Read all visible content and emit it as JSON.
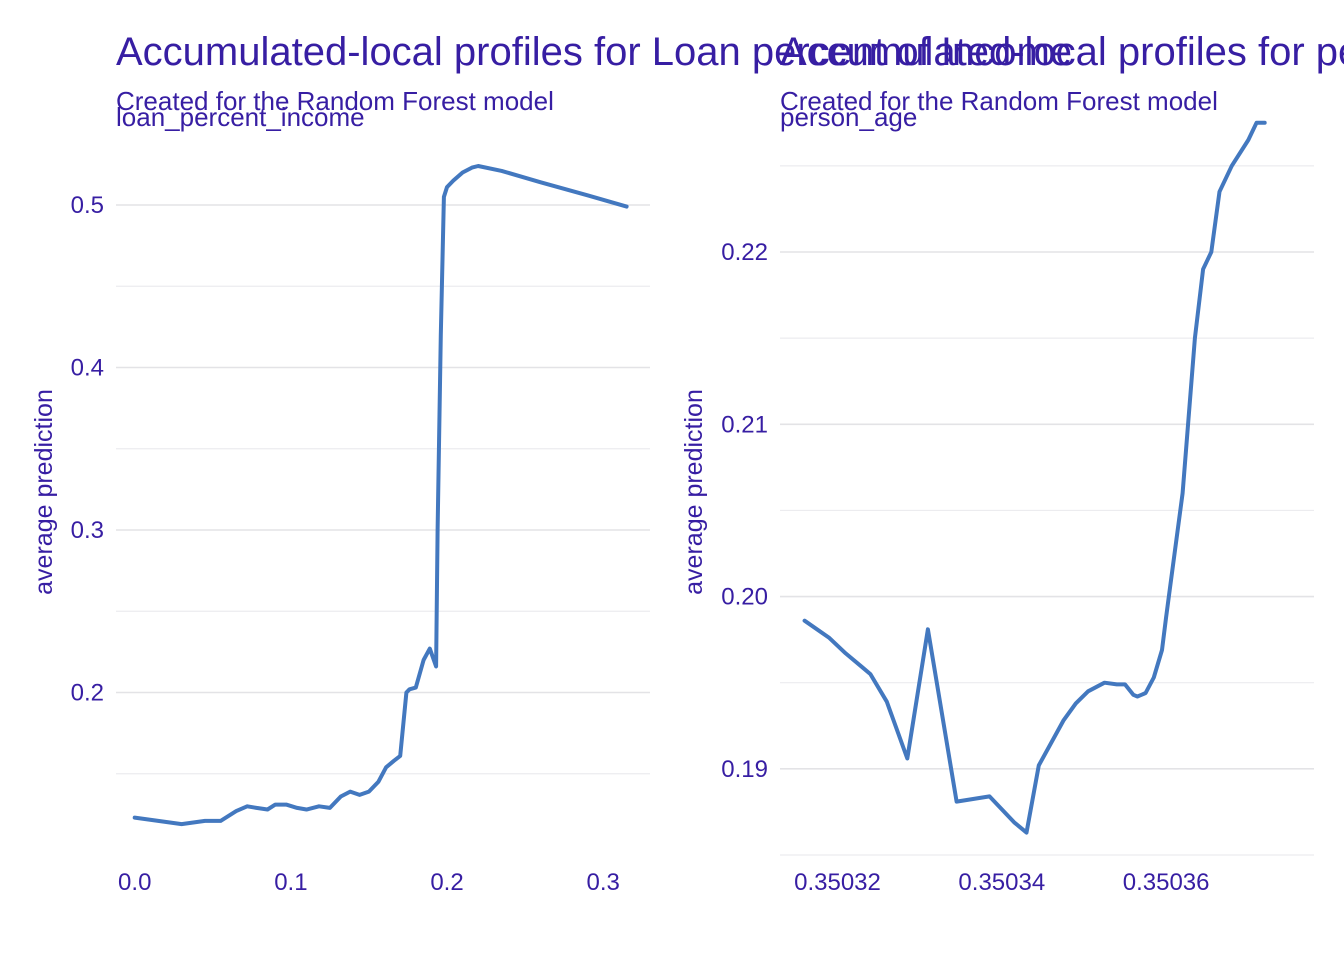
{
  "colors": {
    "text": "#371ea3",
    "line": "#4378bf",
    "grid": "#e3e3e6"
  },
  "chart_data": [
    {
      "type": "line",
      "title": "Accumulated-local profiles for Loan percent of Income",
      "subtitle_line1": "Created for the Random Forest model",
      "subtitle_line2": "loan_percent_income",
      "ylabel": "average prediction",
      "xlabel": "",
      "xlim": [
        -0.012,
        0.33
      ],
      "ylim": [
        0.1,
        0.54
      ],
      "x_ticks": [
        0.0,
        0.1,
        0.2,
        0.3
      ],
      "x_tick_labels": [
        "0.0",
        "0.1",
        "0.2",
        "0.3"
      ],
      "y_ticks": [
        0.2,
        0.3,
        0.4,
        0.5
      ],
      "y_tick_labels": [
        "0.2",
        "0.3",
        "0.4",
        "0.5"
      ],
      "y_minor": [
        0.15,
        0.25,
        0.35,
        0.45
      ],
      "grid": true,
      "series": [
        {
          "x": [
            0.0,
            0.015,
            0.03,
            0.045,
            0.055,
            0.065,
            0.072,
            0.078,
            0.085,
            0.09,
            0.097,
            0.104,
            0.11,
            0.118,
            0.125,
            0.132,
            0.138,
            0.144,
            0.15,
            0.156,
            0.161,
            0.166,
            0.17,
            0.174,
            0.176,
            0.18,
            0.185,
            0.189,
            0.193,
            0.194,
            0.196,
            0.198,
            0.2,
            0.204,
            0.21,
            0.216,
            0.22,
            0.235,
            0.26,
            0.29,
            0.315
          ],
          "values": [
            0.123,
            0.121,
            0.119,
            0.121,
            0.121,
            0.127,
            0.13,
            0.129,
            0.128,
            0.131,
            0.131,
            0.129,
            0.128,
            0.13,
            0.129,
            0.136,
            0.139,
            0.137,
            0.139,
            0.145,
            0.154,
            0.158,
            0.161,
            0.2,
            0.202,
            0.203,
            0.22,
            0.227,
            0.216,
            0.3,
            0.42,
            0.505,
            0.511,
            0.515,
            0.52,
            0.523,
            0.524,
            0.521,
            0.514,
            0.506,
            0.499
          ]
        }
      ]
    },
    {
      "type": "line",
      "title": "Accumulated-local profiles for person_age",
      "subtitle_line1": "Created for the Random Forest model",
      "subtitle_line2": "person_age",
      "ylabel": "average prediction",
      "xlabel": "",
      "xlim": [
        0.350313,
        0.350378
      ],
      "ylim": [
        0.185,
        0.2265
      ],
      "x_ticks": [
        0.35032,
        0.35034,
        0.35036
      ],
      "x_tick_labels": [
        "0.35032",
        "0.35034",
        "0.35036"
      ],
      "y_ticks": [
        0.19,
        0.2,
        0.21,
        0.22
      ],
      "y_tick_labels": [
        "0.19",
        "0.20",
        "0.21",
        "0.22"
      ],
      "y_minor": [
        0.185,
        0.195,
        0.205,
        0.215,
        0.225
      ],
      "grid": true,
      "series": [
        {
          "x": [
            0.350316,
            0.350319,
            0.350321,
            0.350323,
            0.350324,
            0.350326,
            0.3503285,
            0.350331,
            0.3503345,
            0.3503385,
            0.3503415,
            0.350343,
            0.3503445,
            0.3503475,
            0.350349,
            0.3503505,
            0.3503525,
            0.350354,
            0.350355,
            0.350356,
            0.3503565,
            0.350357,
            0.3503575,
            0.3503585,
            0.3503595,
            0.35036,
            0.3503605,
            0.350362,
            0.3503635,
            0.3503645,
            0.3503655,
            0.3503665,
            0.350368,
            0.35037,
            0.350371,
            0.350372
          ],
          "values": [
            0.1986,
            0.1976,
            0.1967,
            0.1959,
            0.1955,
            0.1939,
            0.1906,
            0.1981,
            0.1881,
            0.1884,
            0.1869,
            0.1863,
            0.1902,
            0.1928,
            0.1938,
            0.1945,
            0.195,
            0.1949,
            0.1949,
            0.1943,
            0.1942,
            0.1943,
            0.1944,
            0.1953,
            0.1969,
            0.1988,
            0.2006,
            0.206,
            0.215,
            0.219,
            0.22,
            0.2235,
            0.225,
            0.2265,
            0.2275,
            0.2275
          ]
        }
      ]
    }
  ]
}
